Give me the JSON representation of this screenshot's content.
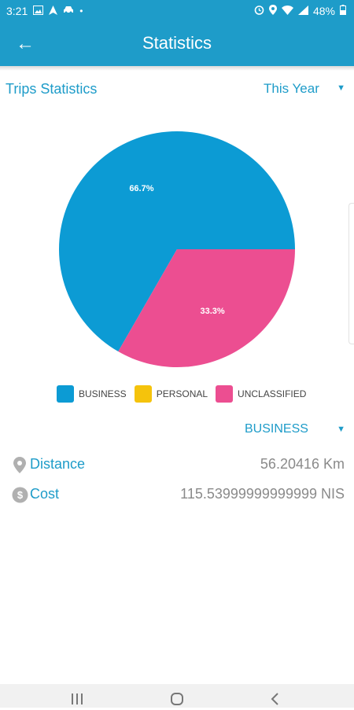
{
  "status_bar": {
    "time": "3:21",
    "battery": "48%",
    "left_icons": [
      "gallery-icon",
      "navigation-icon",
      "car-icon",
      "dot-icon"
    ],
    "right_icons": [
      "alarm-icon",
      "location-icon",
      "wifi-icon",
      "signal-icon",
      "battery-icon"
    ]
  },
  "app_bar": {
    "title": "Statistics",
    "back_icon": "arrow-left-icon"
  },
  "trips": {
    "section_title": "Trips Statistics",
    "period_selected": "This Year"
  },
  "colors": {
    "primary": "#1e9cc9",
    "business": "#0c9bd4",
    "personal": "#f5c30c",
    "unclassified": "#ec4e91"
  },
  "chart_data": {
    "type": "pie",
    "slices": [
      {
        "name": "BUSINESS",
        "value": 66.7,
        "label": "66.7%",
        "color": "#0c9bd4"
      },
      {
        "name": "PERSONAL",
        "value": 0,
        "label": "",
        "color": "#f5c30c"
      },
      {
        "name": "UNCLASSIFIED",
        "value": 33.3,
        "label": "33.3%",
        "color": "#ec4e91"
      }
    ],
    "legend": [
      "BUSINESS",
      "PERSONAL",
      "UNCLASSIFIED"
    ],
    "legend_placement": "bottom"
  },
  "category_filter": {
    "selected": "BUSINESS"
  },
  "stats": {
    "distance": {
      "label": "Distance",
      "value": "56.20416 Km",
      "icon": "location-pin-icon"
    },
    "cost": {
      "label": "Cost",
      "value": "115.53999999999999 NIS",
      "icon": "dollar-coin-icon"
    }
  },
  "nav_bar": {
    "buttons": [
      "recent-apps-icon",
      "home-icon",
      "back-icon"
    ]
  }
}
